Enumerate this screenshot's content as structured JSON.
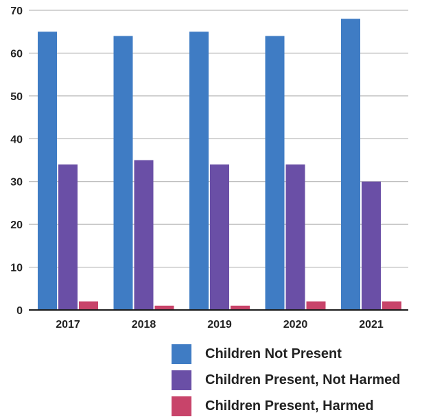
{
  "chart_data": {
    "type": "bar",
    "categories": [
      "2017",
      "2018",
      "2019",
      "2020",
      "2021"
    ],
    "series": [
      {
        "name": "Children Not Present",
        "color": "#3f7cc4",
        "values": [
          65,
          64,
          65,
          64,
          68
        ]
      },
      {
        "name": "Children Present, Not Harmed",
        "color": "#6a4fa6",
        "values": [
          34,
          35,
          34,
          34,
          30
        ]
      },
      {
        "name": "Children Present, Harmed",
        "color": "#c8446a",
        "values": [
          2,
          1,
          1,
          2,
          2
        ]
      }
    ],
    "ylim": [
      0,
      70
    ],
    "yticks": [
      0,
      10,
      20,
      30,
      40,
      50,
      60,
      70
    ],
    "grid": true,
    "legend_position": "bottom-right"
  }
}
